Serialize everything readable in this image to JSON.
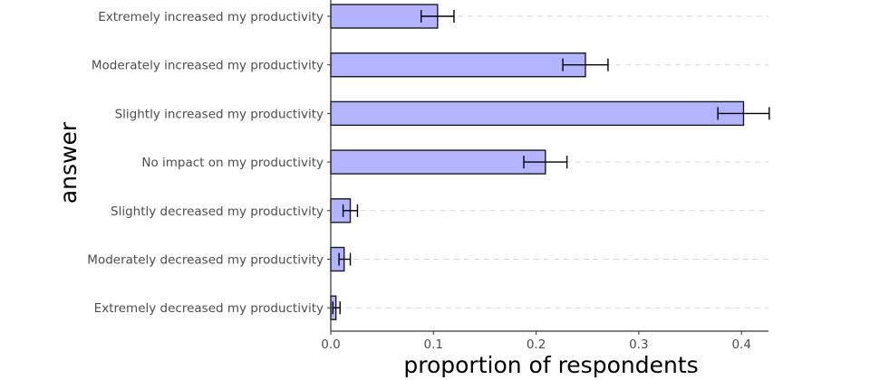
{
  "chart_data": {
    "type": "bar",
    "orientation": "horizontal",
    "xlabel": "proportion of respondents",
    "ylabel": "answer",
    "xlim": [
      0,
      0.43
    ],
    "xticks": [
      "0.0",
      "0.1",
      "0.2",
      "0.3",
      "0.4"
    ],
    "grid": "dashed horizontal guides at each category",
    "bar_color": "#b3b3ff",
    "bar_edge_color": "#1a1a1a",
    "categories": [
      "Extremely increased my productivity",
      "Moderately increased my productivity",
      "Slightly increased my productivity",
      "No impact on my  productivity",
      "Slightly decreased my productivity",
      "Moderately decreased my productivity",
      "Extremely decreased my productivity"
    ],
    "values": [
      0.104,
      0.248,
      0.402,
      0.209,
      0.019,
      0.013,
      0.005
    ],
    "error_low": [
      0.088,
      0.226,
      0.377,
      0.188,
      0.012,
      0.008,
      0.002
    ],
    "error_high": [
      0.12,
      0.27,
      0.427,
      0.23,
      0.026,
      0.019,
      0.009
    ]
  }
}
